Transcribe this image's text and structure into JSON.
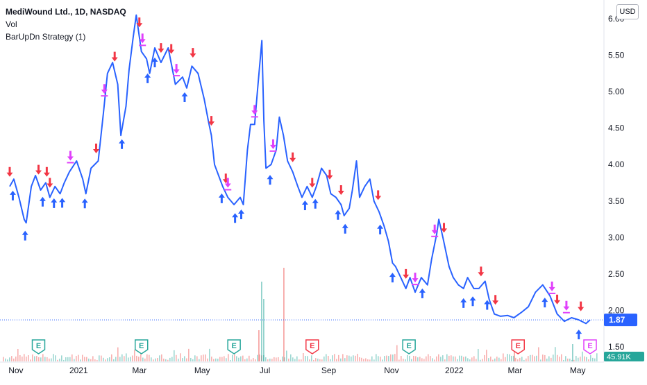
{
  "legend": {
    "symbol_line": "MediWound Ltd., 1D, NASDAQ",
    "volume_label": "Vol",
    "strategy_label": "BarUpDn Strategy (1)"
  },
  "currency": "USD",
  "last_price_label": "1.87",
  "volume_label_value": "45.91K",
  "colors": {
    "line": "#2962ff",
    "long_marker": "#2962ff",
    "short_marker": "#f23645",
    "exit_marker": "#e040fb",
    "price_tag": "#2962ff",
    "volume_tag": "#26a69a",
    "earnings_past": "#26a69a",
    "earnings_future": "#f23645"
  },
  "chart_data": {
    "type": "line",
    "title": "MediWound Ltd., 1D, NASDAQ",
    "xlabel": "",
    "ylabel": "",
    "ylim": [
      1.45,
      6.1
    ],
    "x_tick_labels": [
      "Nov",
      "2021",
      "Mar",
      "May",
      "Jul",
      "Sep",
      "Nov",
      "2022",
      "Mar",
      "May"
    ],
    "y_tick_labels": [
      "6.00",
      "5.50",
      "5.00",
      "4.50",
      "4.00",
      "3.50",
      "3.00",
      "2.50",
      "2.00",
      "1.50"
    ],
    "x_range": [
      "2020-10-26",
      "2022-05-13"
    ],
    "last_value": 1.87,
    "series": [
      {
        "points": [
          [
            "2020-10-26",
            3.7
          ],
          [
            "2020-10-30",
            3.8
          ],
          [
            "2020-11-04",
            3.55
          ],
          [
            "2020-11-09",
            3.25
          ],
          [
            "2020-11-11",
            3.2
          ],
          [
            "2020-11-16",
            3.7
          ],
          [
            "2020-11-20",
            3.85
          ],
          [
            "2020-11-25",
            3.65
          ],
          [
            "2020-11-30",
            3.75
          ],
          [
            "2020-12-04",
            3.55
          ],
          [
            "2020-12-09",
            3.7
          ],
          [
            "2020-12-14",
            3.6
          ],
          [
            "2020-12-18",
            3.75
          ],
          [
            "2020-12-23",
            3.9
          ],
          [
            "2020-12-30",
            4.05
          ],
          [
            "2021-01-05",
            3.8
          ],
          [
            "2021-01-08",
            3.6
          ],
          [
            "2021-01-13",
            3.95
          ],
          [
            "2021-01-20",
            4.05
          ],
          [
            "2021-01-25",
            4.7
          ],
          [
            "2021-01-29",
            5.25
          ],
          [
            "2021-02-03",
            5.4
          ],
          [
            "2021-02-08",
            5.1
          ],
          [
            "2021-02-11",
            4.4
          ],
          [
            "2021-02-16",
            4.8
          ],
          [
            "2021-02-19",
            5.3
          ],
          [
            "2021-02-23",
            5.75
          ],
          [
            "2021-02-26",
            6.05
          ],
          [
            "2021-03-03",
            5.55
          ],
          [
            "2021-03-08",
            5.45
          ],
          [
            "2021-03-11",
            5.25
          ],
          [
            "2021-03-16",
            5.6
          ],
          [
            "2021-03-22",
            5.4
          ],
          [
            "2021-03-29",
            5.6
          ],
          [
            "2021-04-05",
            5.1
          ],
          [
            "2021-04-12",
            5.2
          ],
          [
            "2021-04-16",
            5.05
          ],
          [
            "2021-04-21",
            5.35
          ],
          [
            "2021-04-27",
            5.25
          ],
          [
            "2021-05-03",
            4.9
          ],
          [
            "2021-05-07",
            4.6
          ],
          [
            "2021-05-10",
            4.4
          ],
          [
            "2021-05-13",
            4.0
          ],
          [
            "2021-05-17",
            3.85
          ],
          [
            "2021-05-21",
            3.7
          ],
          [
            "2021-05-26",
            3.55
          ],
          [
            "2021-06-01",
            3.45
          ],
          [
            "2021-06-07",
            3.55
          ],
          [
            "2021-06-10",
            3.45
          ],
          [
            "2021-06-14",
            4.2
          ],
          [
            "2021-06-17",
            4.55
          ],
          [
            "2021-06-21",
            4.55
          ],
          [
            "2021-06-24",
            5.05
          ],
          [
            "2021-06-28",
            5.7
          ],
          [
            "2021-06-30",
            4.6
          ],
          [
            "2021-07-02",
            3.95
          ],
          [
            "2021-07-07",
            4.0
          ],
          [
            "2021-07-12",
            4.2
          ],
          [
            "2021-07-15",
            4.65
          ],
          [
            "2021-07-19",
            4.4
          ],
          [
            "2021-07-23",
            4.05
          ],
          [
            "2021-07-28",
            3.9
          ],
          [
            "2021-08-02",
            3.7
          ],
          [
            "2021-08-06",
            3.55
          ],
          [
            "2021-08-11",
            3.7
          ],
          [
            "2021-08-16",
            3.55
          ],
          [
            "2021-08-20",
            3.7
          ],
          [
            "2021-08-25",
            3.95
          ],
          [
            "2021-08-30",
            3.85
          ],
          [
            "2021-09-03",
            3.6
          ],
          [
            "2021-09-08",
            3.55
          ],
          [
            "2021-09-13",
            3.45
          ],
          [
            "2021-09-16",
            3.3
          ],
          [
            "2021-09-21",
            3.4
          ],
          [
            "2021-09-24",
            3.65
          ],
          [
            "2021-09-28",
            4.05
          ],
          [
            "2021-10-01",
            3.55
          ],
          [
            "2021-10-06",
            3.7
          ],
          [
            "2021-10-11",
            3.8
          ],
          [
            "2021-10-15",
            3.5
          ],
          [
            "2021-10-20",
            3.35
          ],
          [
            "2021-10-25",
            3.15
          ],
          [
            "2021-10-29",
            2.95
          ],
          [
            "2021-11-02",
            2.65
          ],
          [
            "2021-11-05",
            2.6
          ],
          [
            "2021-11-10",
            2.45
          ],
          [
            "2021-11-15",
            2.3
          ],
          [
            "2021-11-19",
            2.45
          ],
          [
            "2021-11-24",
            2.25
          ],
          [
            "2021-11-30",
            2.45
          ],
          [
            "2021-12-06",
            2.35
          ],
          [
            "2021-12-10",
            2.7
          ],
          [
            "2021-12-15",
            3.05
          ],
          [
            "2021-12-17",
            3.25
          ],
          [
            "2021-12-21",
            3.0
          ],
          [
            "2021-12-27",
            2.6
          ],
          [
            "2021-12-31",
            2.45
          ],
          [
            "2022-01-05",
            2.35
          ],
          [
            "2022-01-10",
            2.3
          ],
          [
            "2022-01-14",
            2.45
          ],
          [
            "2022-01-20",
            2.3
          ],
          [
            "2022-01-25",
            2.3
          ],
          [
            "2022-01-31",
            2.4
          ],
          [
            "2022-02-04",
            2.15
          ],
          [
            "2022-02-09",
            1.95
          ],
          [
            "2022-02-15",
            1.92
          ],
          [
            "2022-02-22",
            1.93
          ],
          [
            "2022-02-28",
            1.9
          ],
          [
            "2022-03-07",
            1.97
          ],
          [
            "2022-03-14",
            2.05
          ],
          [
            "2022-03-21",
            2.25
          ],
          [
            "2022-03-28",
            2.35
          ],
          [
            "2022-04-04",
            2.2
          ],
          [
            "2022-04-11",
            1.95
          ],
          [
            "2022-04-18",
            1.85
          ],
          [
            "2022-04-25",
            1.9
          ],
          [
            "2022-05-02",
            1.87
          ],
          [
            "2022-05-09",
            1.82
          ],
          [
            "2022-05-13",
            1.87
          ]
        ]
      }
    ],
    "strategy_markers": {
      "long_entries": [
        "2020-10-29",
        "2020-11-10",
        "2020-11-27",
        "2020-12-08",
        "2020-12-16",
        "2021-01-07",
        "2021-02-12",
        "2021-03-09",
        "2021-03-16",
        "2021-04-14",
        "2021-05-20",
        "2021-06-02",
        "2021-06-08",
        "2021-07-06",
        "2021-08-09",
        "2021-08-19",
        "2021-09-10",
        "2021-09-17",
        "2021-10-21",
        "2021-11-02",
        "2021-12-01",
        "2022-01-10",
        "2022-01-19",
        "2022-02-02",
        "2022-03-30",
        "2022-05-02"
      ],
      "short_entries": [
        "2020-10-26",
        "2020-11-23",
        "2020-12-01",
        "2020-12-04",
        "2021-01-18",
        "2021-02-05",
        "2021-03-01",
        "2021-03-22",
        "2021-04-01",
        "2021-04-22",
        "2021-05-10",
        "2021-05-24",
        "2021-07-28",
        "2021-08-16",
        "2021-09-02",
        "2021-09-13",
        "2021-10-19",
        "2021-11-15",
        "2021-12-22",
        "2022-01-27",
        "2022-02-10",
        "2022-04-11",
        "2022-05-04"
      ],
      "exits": [
        "2020-12-24",
        "2021-01-26",
        "2021-03-04",
        "2021-04-06",
        "2021-05-26",
        "2021-06-21",
        "2021-07-09",
        "2021-11-24",
        "2021-12-13",
        "2022-04-06",
        "2022-04-20"
      ]
    },
    "earnings": [
      {
        "date": "2020-11-23",
        "label": "E",
        "status": "reported"
      },
      {
        "date": "2021-03-03",
        "label": "E",
        "status": "reported"
      },
      {
        "date": "2021-06-01",
        "label": "E",
        "status": "reported"
      },
      {
        "date": "2021-08-16",
        "label": "E",
        "status": "upcoming"
      },
      {
        "date": "2021-11-18",
        "label": "E",
        "status": "reported"
      },
      {
        "date": "2022-03-04",
        "label": "E",
        "status": "upcoming"
      },
      {
        "date": "2022-05-13",
        "label": "E",
        "status": "selected"
      }
    ]
  }
}
